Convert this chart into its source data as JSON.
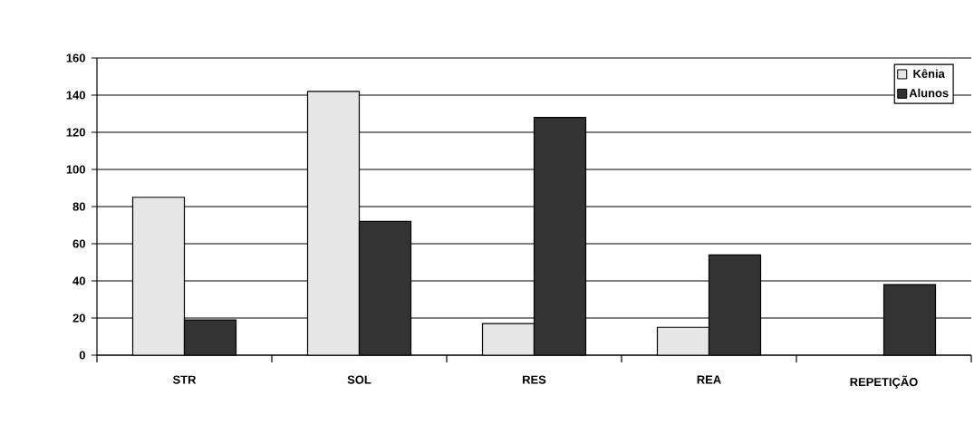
{
  "chart_data": {
    "type": "bar",
    "categories": [
      "STR",
      "SOL",
      "RES",
      "REA",
      "REPETIÇÃO"
    ],
    "series": [
      {
        "name": "Kênia",
        "color": "#e6e6e6",
        "values": [
          85,
          142,
          17,
          15,
          null
        ]
      },
      {
        "name": "Alunos",
        "color": "#333333",
        "values": [
          19,
          72,
          128,
          54,
          38
        ]
      }
    ],
    "ylim": [
      0,
      160
    ],
    "yticks": [
      0,
      20,
      40,
      60,
      80,
      100,
      120,
      140,
      160
    ],
    "grid": "y",
    "legend": "top right"
  }
}
